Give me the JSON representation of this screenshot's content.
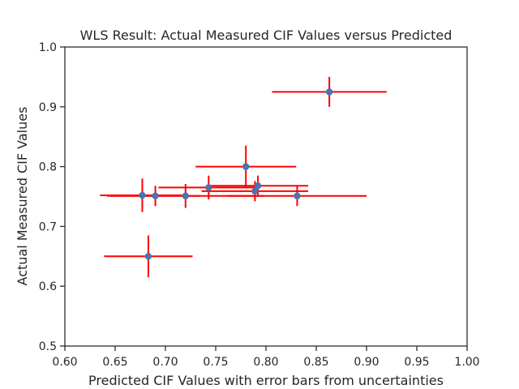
{
  "chart_data": {
    "type": "scatter",
    "title": "WLS Result: Actual Measured CIF Values versus Predicted",
    "xlabel": "Predicted CIF Values with error bars from uncertainties",
    "ylabel": "Actual Measured CIF Values",
    "xlim": [
      0.6,
      1.0
    ],
    "ylim": [
      0.5,
      1.0
    ],
    "xticks": [
      {
        "value": 0.6,
        "label": "0.60"
      },
      {
        "value": 0.65,
        "label": "0.65"
      },
      {
        "value": 0.7,
        "label": "0.70"
      },
      {
        "value": 0.75,
        "label": "0.75"
      },
      {
        "value": 0.8,
        "label": "0.80"
      },
      {
        "value": 0.85,
        "label": "0.85"
      },
      {
        "value": 0.9,
        "label": "0.90"
      },
      {
        "value": 0.95,
        "label": "0.95"
      },
      {
        "value": 1.0,
        "label": "1.00"
      }
    ],
    "yticks": [
      {
        "value": 0.5,
        "label": "0.5"
      },
      {
        "value": 0.6,
        "label": "0.6"
      },
      {
        "value": 0.7,
        "label": "0.7"
      },
      {
        "value": 0.8,
        "label": "0.8"
      },
      {
        "value": 0.9,
        "label": "0.9"
      },
      {
        "value": 1.0,
        "label": "1.0"
      }
    ],
    "grid": false,
    "colors": {
      "marker": "#4c72b0",
      "error_bar": "#ff0000",
      "axis": "#262626"
    },
    "points": [
      {
        "x": 0.863,
        "y": 0.925,
        "xerr": 0.057,
        "yerr": 0.025
      },
      {
        "x": 0.78,
        "y": 0.8,
        "xerr": 0.05,
        "yerr": 0.035
      },
      {
        "x": 0.792,
        "y": 0.768,
        "xerr": 0.05,
        "yerr": 0.017
      },
      {
        "x": 0.789,
        "y": 0.759,
        "xerr": 0.053,
        "yerr": 0.017
      },
      {
        "x": 0.743,
        "y": 0.765,
        "xerr": 0.05,
        "yerr": 0.02
      },
      {
        "x": 0.831,
        "y": 0.751,
        "xerr": 0.069,
        "yerr": 0.017
      },
      {
        "x": 0.72,
        "y": 0.751,
        "xerr": 0.078,
        "yerr": 0.02
      },
      {
        "x": 0.69,
        "y": 0.751,
        "xerr": 0.044,
        "yerr": 0.017
      },
      {
        "x": 0.677,
        "y": 0.752,
        "xerr": 0.042,
        "yerr": 0.028
      },
      {
        "x": 0.683,
        "y": 0.65,
        "xerr": 0.044,
        "yerr": 0.035
      }
    ]
  }
}
